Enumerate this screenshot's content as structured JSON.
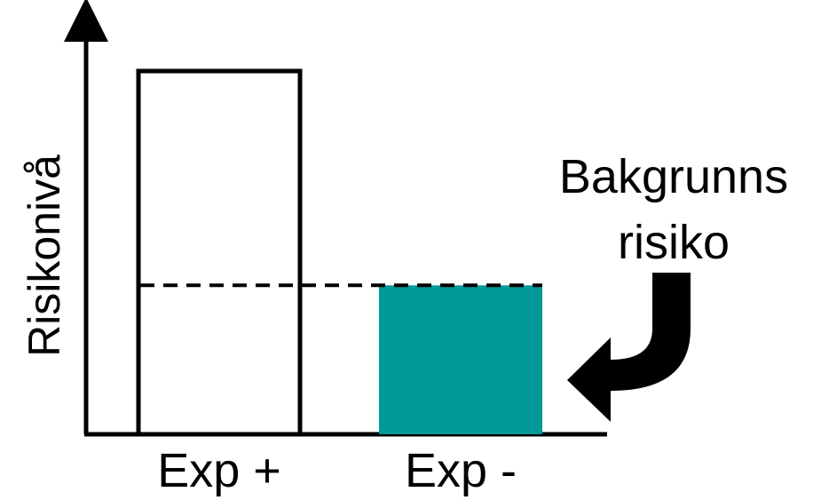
{
  "chart_data": {
    "type": "bar",
    "categories": [
      "Exp +",
      "Exp -"
    ],
    "values": [
      100,
      41
    ],
    "ylabel": "Risikonivå",
    "xlabel": "",
    "ylim": [
      0,
      100
    ],
    "reference_line": {
      "value": 41,
      "style": "dashed"
    },
    "annotation": {
      "lines": [
        "Bakgrunns",
        "risiko"
      ],
      "arrow_to": "Exp -"
    },
    "colors": {
      "exp_plus_fill": "#ffffff",
      "exp_minus_fill": "#009999",
      "stroke": "#000000"
    }
  }
}
